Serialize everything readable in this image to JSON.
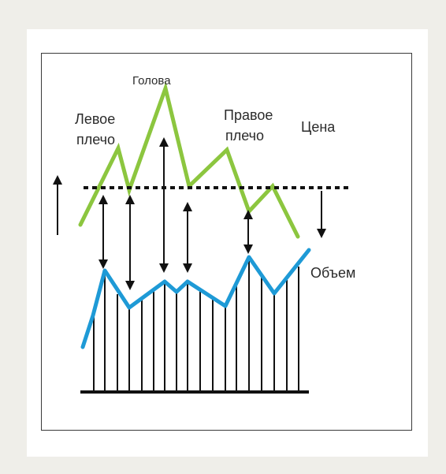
{
  "labels": {
    "head": "Голова",
    "left_shoulder_line1": "Левое",
    "left_shoulder_line2": "плечо",
    "right_shoulder_line1": "Правое",
    "right_shoulder_line2": "плечо",
    "price": "Цена",
    "volume": "Объем"
  },
  "colors": {
    "price_line": "#8cc63f",
    "volume_line": "#1e9ad6",
    "neckline": "#111111",
    "arrows": "#111111",
    "bars": "#111111",
    "background": "#efeee9",
    "panel": "#ffffff"
  },
  "icons": {
    "up_arrow": "up-arrow-icon",
    "down_arrow": "down-arrow-icon",
    "double_arrow": "double-arrow-icon"
  }
}
